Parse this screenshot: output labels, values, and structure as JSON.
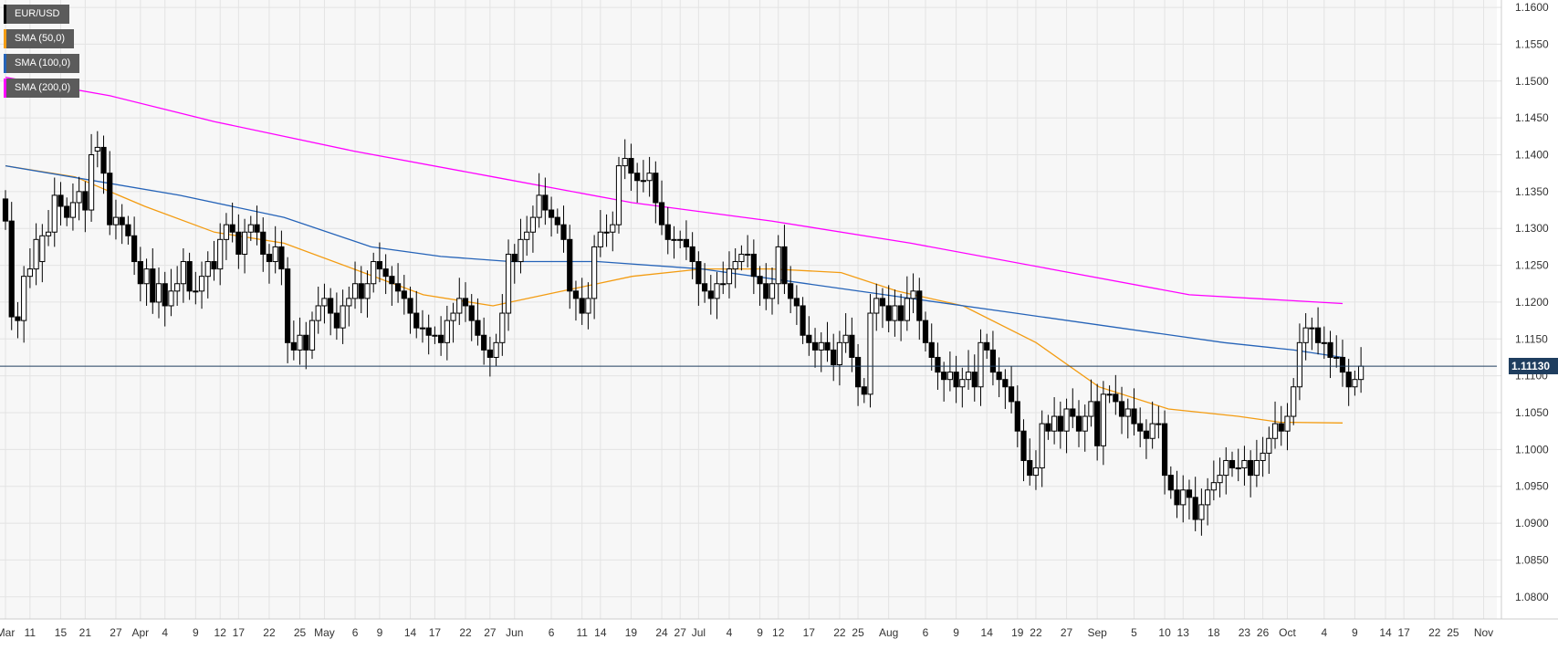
{
  "legend": [
    {
      "label": "EUR/USD",
      "color": "#000000"
    },
    {
      "label": "SMA (50,0)",
      "color": "#f39c12"
    },
    {
      "label": "SMA (100,0)",
      "color": "#2563b8"
    },
    {
      "label": "SMA (200,0)",
      "color": "#ff00ff"
    }
  ],
  "current_price": "1.11130",
  "chart_data": {
    "type": "candlestick",
    "title": "",
    "xlabel": "",
    "ylabel": "",
    "ylim": [
      1.077,
      1.161
    ],
    "y_ticks": [
      "1.1600",
      "1.1550",
      "1.1500",
      "1.1450",
      "1.1400",
      "1.1350",
      "1.1300",
      "1.1250",
      "1.1200",
      "1.1150",
      "1.1100",
      "1.1050",
      "1.1000",
      "1.0950",
      "1.0900",
      "1.0850",
      "1.0800"
    ],
    "x_ticks": [
      "Mar",
      "11",
      "15",
      "21",
      "27",
      "Apr",
      "4",
      "9",
      "12",
      "17",
      "22",
      "25",
      "May",
      "6",
      "9",
      "14",
      "17",
      "22",
      "27",
      "Jun",
      "6",
      "11",
      "14",
      "19",
      "24",
      "27",
      "Jul",
      "4",
      "9",
      "12",
      "17",
      "22",
      "25",
      "Aug",
      "6",
      "9",
      "14",
      "19",
      "22",
      "27",
      "Sep",
      "5",
      "10",
      "13",
      "18",
      "23",
      "26",
      "Oct",
      "4",
      "9",
      "14",
      "17",
      "22",
      "25",
      "Nov"
    ],
    "x_tick_index": [
      0,
      4,
      9,
      13,
      18,
      22,
      26,
      31,
      35,
      38,
      43,
      48,
      52,
      57,
      61,
      66,
      70,
      75,
      79,
      83,
      89,
      94,
      97,
      102,
      107,
      110,
      113,
      118,
      123,
      126,
      131,
      136,
      139,
      144,
      150,
      155,
      160,
      165,
      168,
      173,
      178,
      184,
      189,
      192,
      197,
      202,
      205,
      209,
      215,
      220,
      225,
      228,
      233,
      236,
      241
    ],
    "grid": true,
    "last_price": 1.1113,
    "series": [
      {
        "name": "EUR/USD",
        "type": "candlestick",
        "o": [
          1.134,
          1.131,
          1.118,
          1.1175,
          1.1235,
          1.1245,
          1.1255,
          1.129,
          1.1295,
          1.1345,
          1.133,
          1.1315,
          1.1335,
          1.135,
          1.1325,
          1.1405,
          1.141,
          1.1375,
          1.1305,
          1.1315,
          1.1305,
          1.129,
          1.1255,
          1.1225,
          1.1245,
          1.12,
          1.1225,
          1.1195,
          1.1215,
          1.1225,
          1.1255,
          1.1215,
          1.1215,
          1.1235,
          1.1255,
          1.1245,
          1.1285,
          1.1305,
          1.1295,
          1.1265,
          1.1295,
          1.1305,
          1.1295,
          1.1265,
          1.1255,
          1.1275,
          1.1245,
          1.1145,
          1.1135,
          1.1155,
          1.1135,
          1.1175,
          1.1195,
          1.1205,
          1.1185,
          1.1165,
          1.1195,
          1.1205,
          1.1225,
          1.1205,
          1.1225,
          1.1255,
          1.1245,
          1.1235,
          1.1225,
          1.1215,
          1.1205,
          1.1185,
          1.1165,
          1.1165,
          1.1155,
          1.1155,
          1.1145,
          1.1175,
          1.1185,
          1.1205,
          1.1195,
          1.1175,
          1.1155,
          1.1135,
          1.1125,
          1.1145,
          1.1185,
          1.1265,
          1.1255,
          1.1285,
          1.1295,
          1.1315,
          1.1345,
          1.1325,
          1.1315,
          1.1305,
          1.1285,
          1.1215,
          1.1205,
          1.1185,
          1.1205,
          1.1275,
          1.1295,
          1.1295,
          1.1305,
          1.1385,
          1.1395,
          1.1375,
          1.1365,
          1.1365,
          1.1375,
          1.1335,
          1.1305,
          1.1285,
          1.1285,
          1.1285,
          1.1275,
          1.1255,
          1.1225,
          1.1215,
          1.1205,
          1.1225,
          1.1225,
          1.1245,
          1.1255,
          1.1265,
          1.1265,
          1.1235,
          1.1225,
          1.1205,
          1.1225,
          1.1275,
          1.1225,
          1.1205,
          1.1195,
          1.1155,
          1.1145,
          1.1135,
          1.1145,
          1.1135,
          1.1115,
          1.1145,
          1.1155,
          1.1125,
          1.1085,
          1.1075,
          1.1185,
          1.1205,
          1.1195,
          1.1175,
          1.1195,
          1.1175,
          1.1205,
          1.1215,
          1.1175,
          1.1145,
          1.1125,
          1.1105,
          1.1095,
          1.1105,
          1.1085,
          1.1095,
          1.1105,
          1.1085,
          1.1145,
          1.1135,
          1.1105,
          1.1095,
          1.1085,
          1.1065,
          1.1025,
          1.0985,
          1.0965,
          1.0975,
          1.1035,
          1.1025,
          1.1045,
          1.1025,
          1.1055,
          1.1045,
          1.1025,
          1.1045,
          1.1065,
          1.1005,
          1.1075,
          1.1075,
          1.1065,
          1.1045,
          1.1055,
          1.1035,
          1.1025,
          1.1015,
          1.1035,
          1.1035,
          1.0965,
          1.0945,
          1.0925,
          1.0945,
          1.0935,
          1.0905,
          1.0925,
          1.0945,
          1.0955,
          1.0965,
          1.0985,
          1.0975,
          1.0975,
          1.0985,
          1.0965,
          1.0985,
          1.0995,
          1.1015,
          1.1035,
          1.1025,
          1.1045,
          1.1085,
          1.1145,
          1.1165,
          1.1165,
          1.1145,
          1.1145,
          1.1125,
          1.1125,
          1.1105,
          1.1085,
          1.1095
        ],
        "c": [
          1.131,
          1.118,
          1.1175,
          1.1235,
          1.1245,
          1.1285,
          1.129,
          1.1295,
          1.1345,
          1.133,
          1.1315,
          1.1335,
          1.135,
          1.1325,
          1.14,
          1.141,
          1.1375,
          1.1305,
          1.1315,
          1.1305,
          1.129,
          1.1255,
          1.1225,
          1.1245,
          1.12,
          1.1225,
          1.1195,
          1.1215,
          1.1225,
          1.1255,
          1.1215,
          1.1215,
          1.1235,
          1.1255,
          1.1245,
          1.1285,
          1.1305,
          1.1295,
          1.1265,
          1.1295,
          1.1305,
          1.1295,
          1.1265,
          1.1255,
          1.1275,
          1.1245,
          1.1145,
          1.1135,
          1.1155,
          1.1135,
          1.1175,
          1.1195,
          1.1205,
          1.1185,
          1.1165,
          1.1195,
          1.1205,
          1.1225,
          1.1205,
          1.1225,
          1.1255,
          1.1245,
          1.1235,
          1.1225,
          1.1215,
          1.1205,
          1.1185,
          1.1165,
          1.1165,
          1.1155,
          1.1155,
          1.1145,
          1.1175,
          1.1185,
          1.1205,
          1.1195,
          1.1175,
          1.1155,
          1.1135,
          1.1125,
          1.1145,
          1.1185,
          1.1265,
          1.1255,
          1.1285,
          1.1295,
          1.1315,
          1.1345,
          1.1325,
          1.1315,
          1.1305,
          1.1285,
          1.1215,
          1.1205,
          1.1185,
          1.1205,
          1.1275,
          1.1295,
          1.1295,
          1.1305,
          1.1385,
          1.1395,
          1.1375,
          1.1365,
          1.1365,
          1.1375,
          1.1335,
          1.1305,
          1.1285,
          1.1285,
          1.1285,
          1.1275,
          1.1255,
          1.1225,
          1.1215,
          1.1205,
          1.1225,
          1.1225,
          1.1245,
          1.1255,
          1.1265,
          1.1265,
          1.1235,
          1.1225,
          1.1205,
          1.1225,
          1.1275,
          1.1225,
          1.1205,
          1.1195,
          1.1155,
          1.1145,
          1.1135,
          1.1145,
          1.1135,
          1.1115,
          1.1145,
          1.1155,
          1.1125,
          1.1085,
          1.1075,
          1.1185,
          1.1205,
          1.1195,
          1.1175,
          1.1195,
          1.1175,
          1.1205,
          1.1215,
          1.1175,
          1.1145,
          1.1125,
          1.1105,
          1.1095,
          1.1105,
          1.1085,
          1.1095,
          1.1105,
          1.1085,
          1.1145,
          1.1135,
          1.1105,
          1.1095,
          1.1085,
          1.1065,
          1.1025,
          1.0985,
          1.0965,
          1.0975,
          1.1035,
          1.1025,
          1.1045,
          1.1025,
          1.1055,
          1.1045,
          1.1025,
          1.1045,
          1.1065,
          1.1005,
          1.1075,
          1.1075,
          1.1065,
          1.1045,
          1.1055,
          1.1035,
          1.1025,
          1.1015,
          1.1035,
          1.1035,
          1.0965,
          1.0945,
          1.0925,
          1.0945,
          1.0935,
          1.0905,
          1.0925,
          1.0945,
          1.0955,
          1.0965,
          1.0985,
          1.0975,
          1.0975,
          1.0985,
          1.0965,
          1.0985,
          1.0995,
          1.1015,
          1.1035,
          1.1025,
          1.1045,
          1.1085,
          1.1145,
          1.1165,
          1.1165,
          1.1145,
          1.1145,
          1.1125,
          1.1125,
          1.1105,
          1.1085,
          1.1095,
          1.1113
        ]
      },
      {
        "name": "SMA (50,0)",
        "type": "line",
        "color": "#f39c12",
        "points": [
          [
            0,
            1.1385
          ],
          [
            20,
            1.137
          ],
          [
            40,
            1.133
          ],
          [
            60,
            1.1295
          ],
          [
            80,
            1.128
          ],
          [
            100,
            1.1245
          ],
          [
            120,
            1.121
          ],
          [
            140,
            1.1195
          ],
          [
            160,
            1.1215
          ],
          [
            180,
            1.1235
          ],
          [
            200,
            1.1245
          ],
          [
            220,
            1.1245
          ],
          [
            240,
            1.124
          ],
          [
            256,
            1.1215
          ],
          [
            275,
            1.1195
          ],
          [
            296,
            1.1145
          ],
          [
            314,
            1.1085
          ],
          [
            334,
            1.1055
          ],
          [
            354,
            1.1045
          ],
          [
            366,
            1.1037
          ],
          [
            384,
            1.1036
          ]
        ]
      },
      {
        "name": "SMA (100,0)",
        "type": "line",
        "color": "#2563b8",
        "points": [
          [
            0,
            1.1385
          ],
          [
            25,
            1.1365
          ],
          [
            50,
            1.1345
          ],
          [
            80,
            1.1315
          ],
          [
            105,
            1.1275
          ],
          [
            125,
            1.1262
          ],
          [
            145,
            1.1255
          ],
          [
            170,
            1.1255
          ],
          [
            200,
            1.1245
          ],
          [
            230,
            1.1225
          ],
          [
            260,
            1.1205
          ],
          [
            290,
            1.1185
          ],
          [
            320,
            1.1165
          ],
          [
            350,
            1.1145
          ],
          [
            370,
            1.1135
          ],
          [
            384,
            1.1125
          ]
        ]
      },
      {
        "name": "SMA (200,0)",
        "type": "line",
        "color": "#ff00ff",
        "points": [
          [
            0,
            1.1505
          ],
          [
            30,
            1.148
          ],
          [
            60,
            1.1445
          ],
          [
            100,
            1.1405
          ],
          [
            140,
            1.137
          ],
          [
            180,
            1.1335
          ],
          [
            220,
            1.131
          ],
          [
            260,
            1.128
          ],
          [
            300,
            1.1245
          ],
          [
            340,
            1.121
          ],
          [
            384,
            1.1198
          ]
        ]
      }
    ]
  }
}
